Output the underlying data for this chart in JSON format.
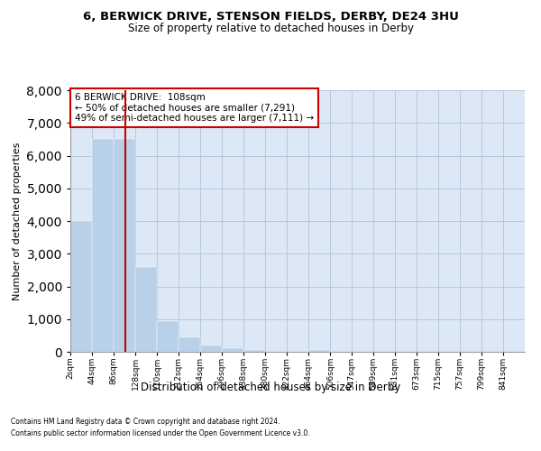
{
  "title_line1": "6, BERWICK DRIVE, STENSON FIELDS, DERBY, DE24 3HU",
  "title_line2": "Size of property relative to detached houses in Derby",
  "xlabel": "Distribution of detached houses by size in Derby",
  "ylabel": "Number of detached properties",
  "footnote1": "Contains HM Land Registry data © Crown copyright and database right 2024.",
  "footnote2": "Contains public sector information licensed under the Open Government Licence v3.0.",
  "annotation_line1": "6 BERWICK DRIVE:  108sqm",
  "annotation_line2": "← 50% of detached houses are smaller (7,291)",
  "annotation_line3": "49% of semi-detached houses are larger (7,111) →",
  "bar_color": "#b8d0e8",
  "bar_edge_color": "#b8d0e8",
  "redline_x": 108,
  "categories": [
    "2sqm",
    "44sqm",
    "86sqm",
    "128sqm",
    "170sqm",
    "212sqm",
    "254sqm",
    "296sqm",
    "338sqm",
    "380sqm",
    "422sqm",
    "464sqm",
    "506sqm",
    "547sqm",
    "589sqm",
    "631sqm",
    "673sqm",
    "715sqm",
    "757sqm",
    "799sqm",
    "841sqm"
  ],
  "bin_edges": [
    2,
    44,
    86,
    128,
    170,
    212,
    254,
    296,
    338,
    380,
    422,
    464,
    506,
    547,
    589,
    631,
    673,
    715,
    757,
    799,
    841,
    883
  ],
  "bar_heights": [
    4000,
    6500,
    6500,
    2600,
    950,
    450,
    200,
    100,
    50,
    0,
    0,
    50,
    0,
    0,
    0,
    0,
    0,
    0,
    0,
    0,
    0
  ],
  "ylim": [
    0,
    8000
  ],
  "yticks": [
    0,
    1000,
    2000,
    3000,
    4000,
    5000,
    6000,
    7000,
    8000
  ],
  "background_color": "#ffffff",
  "plot_bg_color": "#dce8f5",
  "grid_color": "#b0c4d8",
  "annotation_box_color": "#ffffff",
  "annotation_box_edge_color": "#cc0000",
  "red_line_color": "#cc0000"
}
